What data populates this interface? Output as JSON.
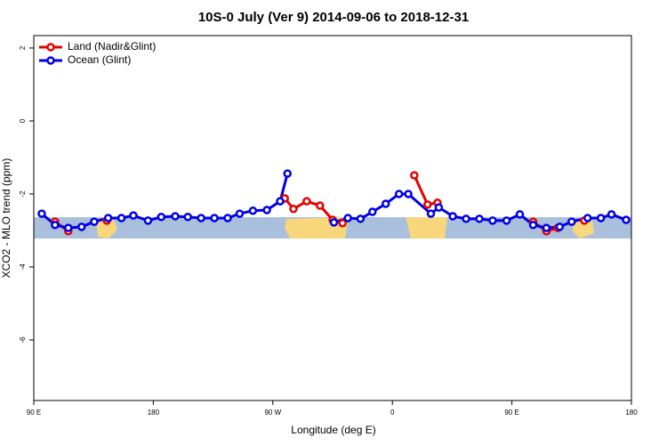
{
  "chart_data": {
    "type": "line",
    "title": "10S-0 July (Ver 9)   2014-09-06 to 2018-12-31",
    "xlabel": "Longitude (deg E)",
    "ylabel": "XCO2 - MLO trend (ppm)",
    "xlim": [
      90,
      540
    ],
    "xticks": [
      {
        "value": 90,
        "label": "90 E"
      },
      {
        "value": 180,
        "label": "180"
      },
      {
        "value": 270,
        "label": "90 W"
      },
      {
        "value": 360,
        "label": "0"
      },
      {
        "value": 450,
        "label": "90 E"
      },
      {
        "value": 540,
        "label": "180"
      }
    ],
    "ylim": [
      -7.66,
      2.34
    ],
    "yticks": [
      2,
      0,
      -2,
      -4,
      -6
    ],
    "legend": "top-left",
    "series": [
      {
        "name": "Land (Nadir&Glint)",
        "color": "#e60000",
        "x": [
          106,
          116,
          null,
          145,
          null,
          279,
          285.5,
          295.5,
          305.5,
          315,
          322.5,
          null,
          376.5,
          386.5,
          394,
          null,
          466,
          476,
          484.5,
          null,
          504.5
        ],
        "values": [
          -2.76,
          -3.02,
          null,
          -2.73,
          null,
          -2.12,
          -2.41,
          -2.2,
          -2.32,
          -2.71,
          -2.8,
          null,
          -1.49,
          -2.29,
          -2.24,
          null,
          -2.76,
          -3.02,
          -2.93,
          null,
          -2.73
        ]
      },
      {
        "name": "Ocean (Glint)",
        "color": "#0000e6",
        "x": [
          96,
          106,
          116,
          126,
          135.5,
          146,
          156,
          165,
          176,
          186,
          196.5,
          206,
          216,
          226,
          236,
          245,
          255,
          265.5,
          275.5,
          281,
          null,
          316,
          326.5,
          336,
          345,
          355,
          365,
          372,
          389,
          395,
          405.5,
          415.5,
          425.5,
          435.5,
          446,
          456,
          466,
          476,
          486,
          495,
          507,
          517,
          525,
          536
        ],
        "values": [
          -2.54,
          -2.85,
          -2.93,
          -2.9,
          -2.76,
          -2.66,
          -2.66,
          -2.59,
          -2.73,
          -2.63,
          -2.61,
          -2.63,
          -2.66,
          -2.66,
          -2.66,
          -2.54,
          -2.46,
          -2.44,
          -2.2,
          -1.44,
          null,
          -2.78,
          -2.66,
          -2.68,
          -2.49,
          -2.27,
          -2.0,
          -2.0,
          -2.54,
          -2.37,
          -2.61,
          -2.68,
          -2.68,
          -2.73,
          -2.73,
          -2.56,
          -2.85,
          -2.93,
          -2.9,
          -2.76,
          -2.66,
          -2.66,
          -2.56,
          -2.71
        ]
      }
    ]
  }
}
